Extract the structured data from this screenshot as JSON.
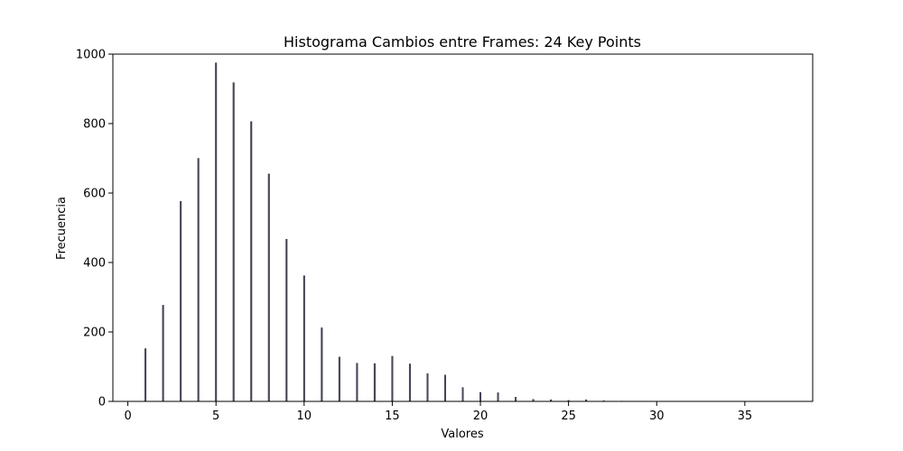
{
  "chart_data": {
    "type": "bar",
    "title": "Histograma Cambios entre Frames: 24 Key Points",
    "xlabel": "Valores",
    "ylabel": "Frecuencia",
    "xlim": [
      -0.85,
      38.85
    ],
    "ylim": [
      0,
      1000
    ],
    "xticks": [
      0,
      5,
      10,
      15,
      20,
      25,
      30,
      35
    ],
    "yticks": [
      0,
      200,
      400,
      600,
      800,
      1000
    ],
    "bar_color": "#4a4a5a",
    "bar_edge_color": "#2a2a40",
    "grid": false,
    "series": [
      {
        "x": [
          1,
          2,
          3,
          4,
          5,
          6,
          7,
          8,
          9,
          10,
          11,
          12,
          13,
          14,
          15,
          16,
          17,
          18,
          19,
          20,
          21,
          22,
          23,
          24,
          25,
          26,
          27,
          28
        ],
        "values": [
          152,
          277,
          576,
          700,
          975,
          918,
          806,
          655,
          467,
          362,
          212,
          128,
          110,
          109,
          130,
          108,
          80,
          76,
          40,
          26,
          25,
          12,
          6,
          5,
          3,
          5,
          2,
          1
        ]
      }
    ]
  }
}
